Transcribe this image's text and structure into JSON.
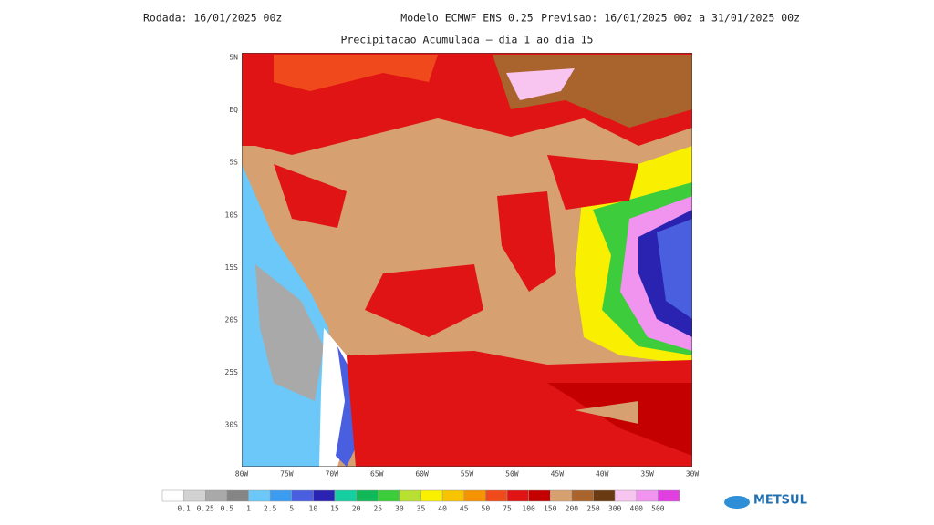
{
  "header": {
    "rodada": "Rodada: 16/01/2025 00z",
    "model": "Modelo ECMWF ENS 0.25",
    "previsao": "Previsao: 16/01/2025 00z a 31/01/2025 00z",
    "subtitle": "Precipitacao Acumulada — dia 1 ao dia 15"
  },
  "lat_labels": [
    "5N",
    "EQ",
    "5S",
    "10S",
    "15S",
    "20S",
    "25S",
    "30S"
  ],
  "lon_labels": [
    "80W",
    "75W",
    "70W",
    "65W",
    "60W",
    "55W",
    "50W",
    "45W",
    "40W",
    "35W",
    "30W"
  ],
  "legend": {
    "labels": [
      "0.1",
      "0.25",
      "0.5",
      "1",
      "2.5",
      "5",
      "10",
      "15",
      "20",
      "25",
      "30",
      "35",
      "40",
      "45",
      "50",
      "75",
      "100",
      "150",
      "200",
      "250",
      "300",
      "400",
      "500"
    ],
    "colors": [
      "#ffffff",
      "#d2d2d2",
      "#a9a9a9",
      "#858585",
      "#6cc8f8",
      "#3c9cf0",
      "#4a5ee0",
      "#2a22b0",
      "#14d0a0",
      "#10b858",
      "#3ccc3c",
      "#b8e030",
      "#f8f000",
      "#f8c400",
      "#f49400",
      "#f04a1c",
      "#e01414",
      "#c40000",
      "#d6a070",
      "#a8642c",
      "#6a3a12",
      "#f8c4f0",
      "#f094f0",
      "#e040e0"
    ]
  },
  "logo": {
    "text": "METSUL"
  }
}
